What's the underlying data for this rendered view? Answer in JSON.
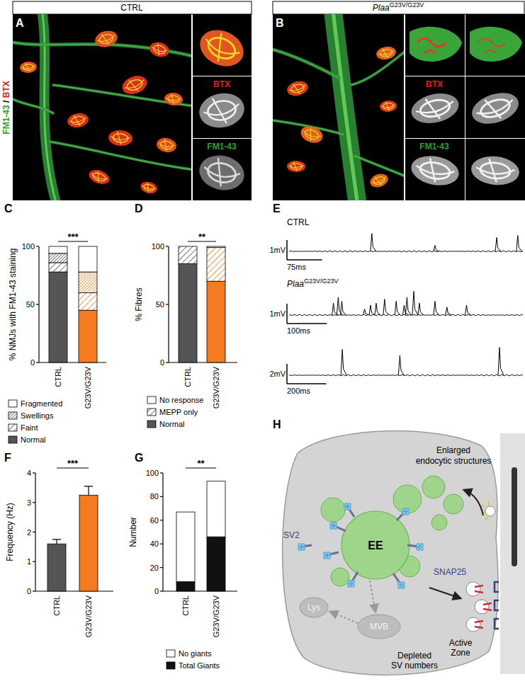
{
  "image_panels": [
    {
      "panel_label": "A",
      "header": "CTRL",
      "stain_labels": [
        "FM1-43",
        "/",
        "BTX"
      ],
      "inset_labels": [
        "BTX",
        "FM1-43"
      ]
    },
    {
      "panel_label": "B",
      "header_gene": "Plaa",
      "header_genotype": "G23V/G23V",
      "inset_labels": [
        "BTX",
        "FM1-43"
      ]
    }
  ],
  "chart_data": [
    {
      "type": "bar",
      "panel_label": "C",
      "stacked": true,
      "legend": "bottom",
      "y_label": "% NMJs with FM1-43 staining",
      "categories": [
        "CTRL",
        "G23V/G23V"
      ],
      "ylim": [
        0,
        100
      ],
      "yticks": [
        0,
        50,
        100
      ],
      "annotations": [
        "***"
      ],
      "series": [
        {
          "name": "Normal",
          "colors": [
            "#555555",
            "#f47b20"
          ],
          "values": [
            78,
            45
          ]
        },
        {
          "name": "Faint",
          "colors": [
            "#555555",
            "#f47b20"
          ],
          "marker": "hatch",
          "values": [
            8,
            15
          ]
        },
        {
          "name": "Swellings",
          "colors": [
            "#555555",
            "#f47b20"
          ],
          "marker": "dense_hatch",
          "values": [
            8,
            18
          ]
        },
        {
          "name": "Fragmented",
          "colors": [
            "#ffffff",
            "#ffffff"
          ],
          "values": [
            6,
            22
          ]
        }
      ]
    },
    {
      "type": "bar",
      "panel_label": "D",
      "stacked": true,
      "legend": "bottom",
      "y_label": "% Fibres",
      "categories": [
        "CTRL",
        "G23V/G23V"
      ],
      "ylim": [
        0,
        100
      ],
      "yticks": [
        0,
        50,
        100
      ],
      "annotations": [
        "**"
      ],
      "series": [
        {
          "name": "Normal",
          "colors": [
            "#555555",
            "#f47b20"
          ],
          "values": [
            85,
            70
          ]
        },
        {
          "name": "MEPP only",
          "colors": [
            "#555555",
            "#f47b20"
          ],
          "marker": "hatch",
          "values": [
            15,
            29
          ]
        },
        {
          "name": "No response",
          "colors": [
            "#ffffff",
            "#ffffff"
          ],
          "values": [
            0,
            1
          ]
        }
      ]
    },
    {
      "type": "bar",
      "panel_label": "F",
      "y_label": "Frequency (Hz)",
      "categories": [
        "CTRL",
        "G23V/G23V"
      ],
      "values": [
        1.6,
        3.25
      ],
      "errors": [
        0.15,
        0.3
      ],
      "colors": [
        "#555555",
        "#f47b20"
      ],
      "ylim": [
        0,
        4
      ],
      "yticks": [
        0,
        1,
        2,
        3,
        4
      ],
      "annotations": [
        "***"
      ]
    },
    {
      "type": "bar",
      "panel_label": "G",
      "stacked": true,
      "legend": "bottom",
      "y_label": "Number",
      "categories": [
        "CTRL",
        "G23V/G23V"
      ],
      "ylim": [
        0,
        100
      ],
      "yticks": [
        0,
        20,
        40,
        60,
        80,
        100
      ],
      "annotations": [
        "**"
      ],
      "series": [
        {
          "name": "Total Giants",
          "color": "#111111",
          "values": [
            8,
            46
          ]
        },
        {
          "name": "No giants",
          "color": "#ffffff",
          "values": [
            59,
            47
          ]
        }
      ]
    }
  ],
  "traces": {
    "panel_label": "E",
    "rows": [
      {
        "title": "CTRL",
        "duration_ms": 500,
        "scale_mv": 1,
        "scale_mv_label": "1mV",
        "scale_ms": 75,
        "scale_ms_label": "75ms",
        "event_times_ms": [
          177,
          312,
          444,
          489
        ],
        "event_amplitudes_mv": [
          0.9,
          0.3,
          0.7,
          0.8
        ]
      },
      {
        "title_gene": "Plaa",
        "title_genotype": "G23V/G23V",
        "duration_ms": 585,
        "scale_mv": 1,
        "scale_mv_label": "1mV",
        "scale_ms": 100,
        "scale_ms_label": "100ms",
        "event_times_ms": [
          111,
          123,
          132,
          189,
          204,
          218,
          239,
          268,
          288,
          295,
          312,
          326,
          365,
          395,
          444
        ],
        "event_amplitudes_mv": [
          0.6,
          0.9,
          0.7,
          0.3,
          0.5,
          0.6,
          0.8,
          0.7,
          0.5,
          0.9,
          1.2,
          0.6,
          0.7,
          0.4,
          0.5
        ]
      },
      {
        "duration_ms": 1190,
        "scale_mv": 2,
        "scale_mv_label": "2mV",
        "scale_ms": 200,
        "scale_ms_label": "200ms",
        "event_times_ms": [
          271,
          564,
          1071
        ],
        "event_amplitudes_mv": [
          2.6,
          2.0,
          2.8
        ]
      }
    ]
  },
  "diagram": {
    "panel_label": "H",
    "enlarged": [
      "Enlarged",
      "endocytic structures"
    ],
    "ee": "EE",
    "sv2": "SV2",
    "snap25": "SNAP25",
    "active_zone": [
      "Active",
      "Zone"
    ],
    "lys": "Lys",
    "mvb": "MVB",
    "depleted": [
      "Depleted",
      "SV numbers"
    ]
  }
}
